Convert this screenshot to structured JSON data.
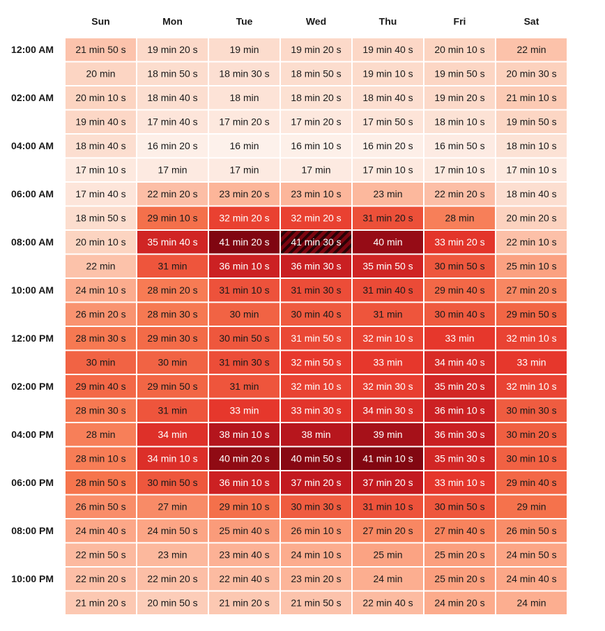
{
  "chart_data": {
    "type": "heatmap",
    "title": "",
    "xlabel": "",
    "ylabel": "",
    "x_categories": [
      "Sun",
      "Mon",
      "Tue",
      "Wed",
      "Thu",
      "Fri",
      "Sat"
    ],
    "y_tick_labels": [
      "12:00 AM",
      "",
      "02:00 AM",
      "",
      "04:00 AM",
      "",
      "06:00 AM",
      "",
      "08:00 AM",
      "",
      "10:00 AM",
      "",
      "12:00 PM",
      "",
      "02:00 PM",
      "",
      "04:00 PM",
      "",
      "06:00 PM",
      "",
      "08:00 PM",
      "",
      "10:00 PM",
      ""
    ],
    "cell_labels": [
      [
        "21 min 50 s",
        "19 min 20 s",
        "19 min",
        "19 min 20 s",
        "19 min 40 s",
        "20 min 10 s",
        "22 min"
      ],
      [
        "20 min",
        "18 min 50 s",
        "18 min 30 s",
        "18 min 50 s",
        "19 min 10 s",
        "19 min 50 s",
        "20 min 30 s"
      ],
      [
        "20 min 10 s",
        "18 min 40 s",
        "18 min",
        "18 min 20 s",
        "18 min 40 s",
        "19 min 20 s",
        "21 min 10 s"
      ],
      [
        "19 min 40 s",
        "17 min 40 s",
        "17 min 20 s",
        "17 min 20 s",
        "17 min 50 s",
        "18 min 10 s",
        "19 min 50 s"
      ],
      [
        "18 min 40 s",
        "16 min 20 s",
        "16 min",
        "16 min 10 s",
        "16 min 20 s",
        "16 min 50 s",
        "18 min 10 s"
      ],
      [
        "17 min 10 s",
        "17 min",
        "17 min",
        "17 min",
        "17 min 10 s",
        "17 min 10 s",
        "17 min 10 s"
      ],
      [
        "17 min 40 s",
        "22 min 20 s",
        "23 min 20 s",
        "23 min 10 s",
        "23 min",
        "22 min 20 s",
        "18 min 40 s"
      ],
      [
        "18 min 50 s",
        "29 min 10 s",
        "32 min 20 s",
        "32 min 20 s",
        "31 min 20 s",
        "28 min",
        "20 min 20 s"
      ],
      [
        "20 min 10 s",
        "35 min 40 s",
        "41 min 20 s",
        "41 min 30 s",
        "40 min",
        "33 min 20 s",
        "22 min 10 s"
      ],
      [
        "22 min",
        "31 min",
        "36 min 10 s",
        "36 min 30 s",
        "35 min 50 s",
        "30 min 50 s",
        "25 min 10 s"
      ],
      [
        "24 min 10 s",
        "28 min 20 s",
        "31 min 10 s",
        "31 min 30 s",
        "31 min 40 s",
        "29 min 40 s",
        "27 min 20 s"
      ],
      [
        "26 min 20 s",
        "28 min 30 s",
        "30 min",
        "30 min 40 s",
        "31 min",
        "30 min 40 s",
        "29 min 50 s"
      ],
      [
        "28 min 30 s",
        "29 min 30 s",
        "30 min 50 s",
        "31 min 50 s",
        "32 min 10 s",
        "33 min",
        "32 min 10 s"
      ],
      [
        "30 min",
        "30 min",
        "31 min 30 s",
        "32 min 50 s",
        "33 min",
        "34 min 40 s",
        "33 min"
      ],
      [
        "29 min 40 s",
        "29 min 50 s",
        "31 min",
        "32 min 10 s",
        "32 min 30 s",
        "35 min 20 s",
        "32 min 10 s"
      ],
      [
        "28 min 30 s",
        "31 min",
        "33 min",
        "33 min 30 s",
        "34 min 30 s",
        "36 min 10 s",
        "30 min 30 s"
      ],
      [
        "28 min",
        "34 min",
        "38 min 10 s",
        "38 min",
        "39 min",
        "36 min 30 s",
        "30 min 20 s"
      ],
      [
        "28 min 10 s",
        "34 min 10 s",
        "40 min 20 s",
        "40 min 50 s",
        "41 min 10 s",
        "35 min 30 s",
        "30 min 10 s"
      ],
      [
        "28 min 50 s",
        "30 min 50 s",
        "36 min 10 s",
        "37 min 20 s",
        "37 min 20 s",
        "33 min 10 s",
        "29 min 40 s"
      ],
      [
        "26 min 50 s",
        "27 min",
        "29 min 10 s",
        "30 min 30 s",
        "31 min 10 s",
        "30 min 50 s",
        "29 min"
      ],
      [
        "24 min 40 s",
        "24 min 50 s",
        "25 min 40 s",
        "26 min 10 s",
        "27 min 20 s",
        "27 min 40 s",
        "26 min 50 s"
      ],
      [
        "22 min 50 s",
        "23 min",
        "23 min 40 s",
        "24 min 10 s",
        "25 min",
        "25 min 20 s",
        "24 min 50 s"
      ],
      [
        "22 min 20 s",
        "22 min 20 s",
        "22 min 40 s",
        "23 min 20 s",
        "24 min",
        "25 min 20 s",
        "24 min 40 s"
      ],
      [
        "21 min 20 s",
        "20 min 50 s",
        "21 min 20 s",
        "21 min 50 s",
        "22 min 40 s",
        "24 min 20 s",
        "24 min"
      ]
    ],
    "values_unit": "minutes",
    "highlighted_cell": {
      "row": 8,
      "col": 3
    },
    "color_scale": {
      "stops": [
        "#fdf1eb",
        "#fcd3c0",
        "#fca98a",
        "#f6764e",
        "#e6372c",
        "#c31a20",
        "#7d0510"
      ]
    },
    "text_colors": {
      "dark": "#1a1a1a",
      "light": "#ffffff"
    }
  }
}
